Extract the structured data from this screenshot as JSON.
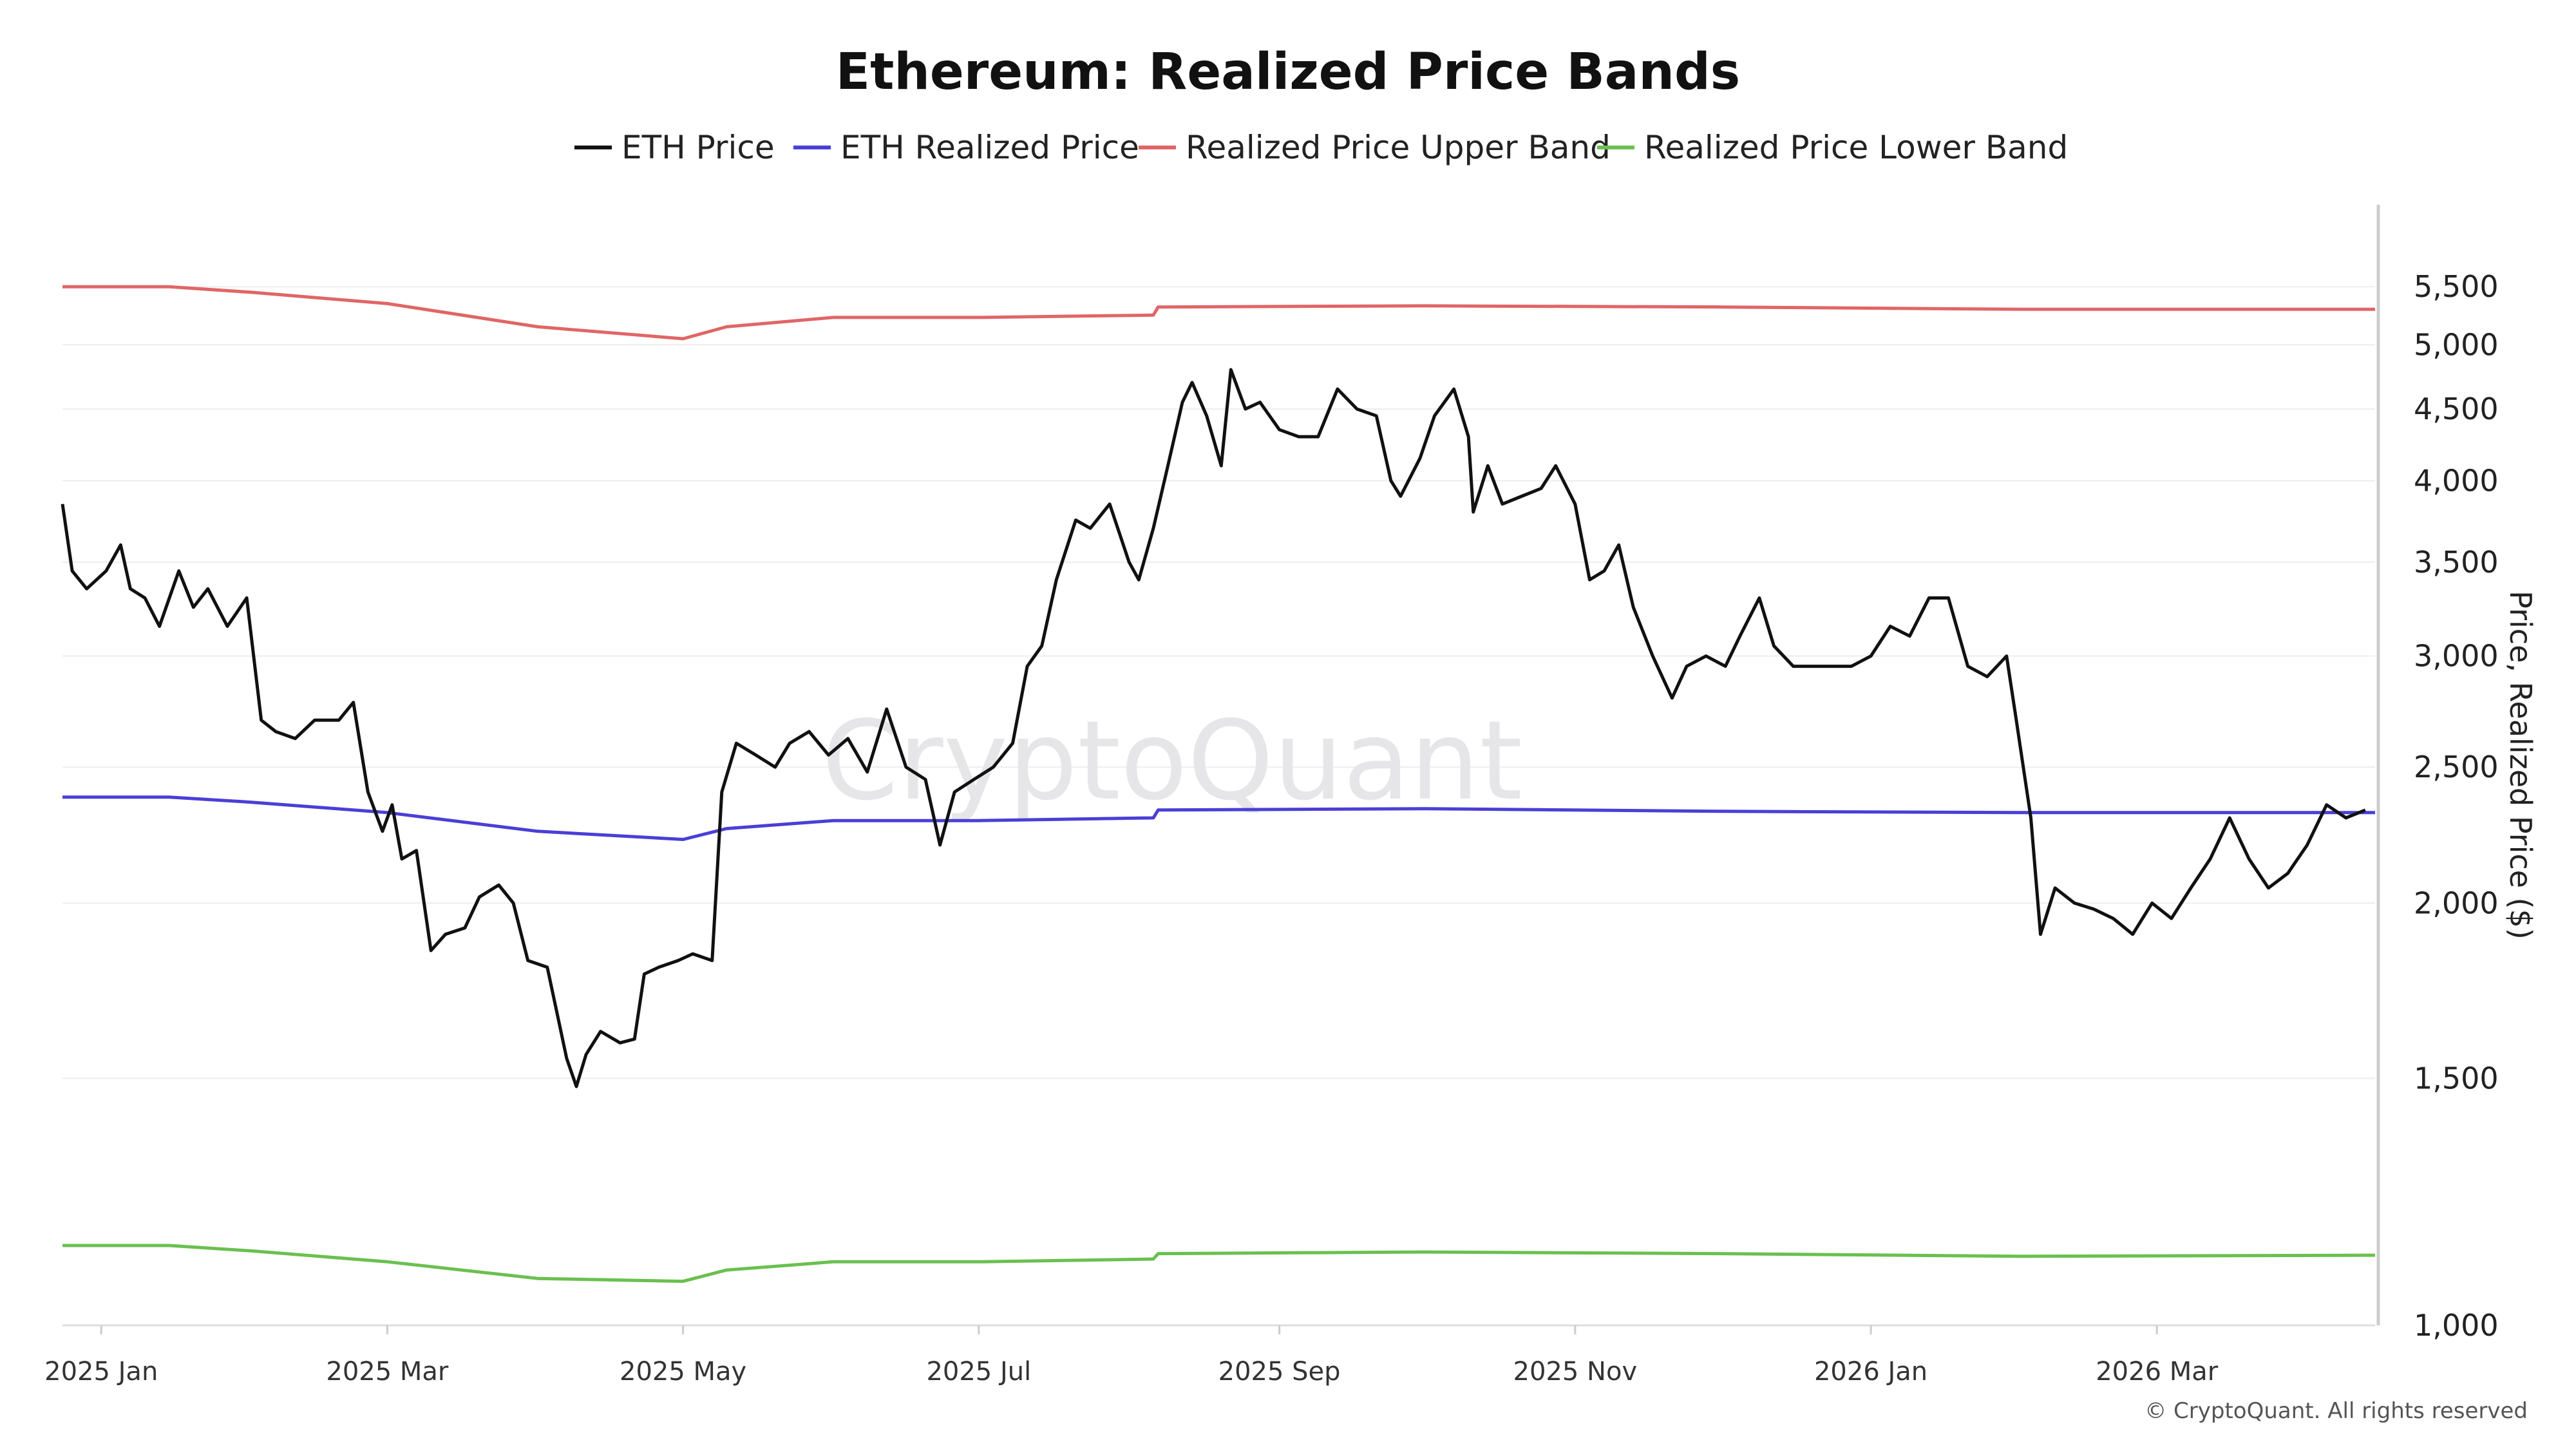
{
  "watermark": "CryptoQuant",
  "copyright": "© CryptoQuant. All rights reserved",
  "chart_data": {
    "type": "line",
    "title": "Ethereum: Realized Price Bands",
    "ylabel": "Price, Realized Price ($)",
    "xlabel": "",
    "y_scale": "log",
    "ylim": [
      1000,
      5800
    ],
    "grid": "horizontal",
    "legend_position": "top-center",
    "y_ticks": [
      {
        "value": 1000,
        "label": "1,000"
      },
      {
        "value": 1500,
        "label": "1,500"
      },
      {
        "value": 2000,
        "label": "2,000"
      },
      {
        "value": 2500,
        "label": "2,500"
      },
      {
        "value": 3000,
        "label": "3,000"
      },
      {
        "value": 3500,
        "label": "3,500"
      },
      {
        "value": 4000,
        "label": "4,000"
      },
      {
        "value": 4500,
        "label": "4,500"
      },
      {
        "value": 5000,
        "label": "5,000"
      },
      {
        "value": 5500,
        "label": "5,500"
      }
    ],
    "x_range": [
      "2024-12-24",
      "2026-04-15"
    ],
    "x_ticks": [
      {
        "date": "2025-01-01",
        "label": "2025 Jan"
      },
      {
        "date": "2025-03-01",
        "label": "2025 Mar"
      },
      {
        "date": "2025-05-01",
        "label": "2025 May"
      },
      {
        "date": "2025-07-01",
        "label": "2025 Jul"
      },
      {
        "date": "2025-09-01",
        "label": "2025 Sep"
      },
      {
        "date": "2025-11-01",
        "label": "2025 Nov"
      },
      {
        "date": "2026-01-01",
        "label": "2026 Jan"
      },
      {
        "date": "2026-03-01",
        "label": "2026 Mar"
      }
    ],
    "series": [
      {
        "name": "ETH Price",
        "color": "#111111",
        "points": [
          [
            "2024-12-24",
            3850
          ],
          [
            "2024-12-26",
            3450
          ],
          [
            "2024-12-29",
            3350
          ],
          [
            "2025-01-02",
            3450
          ],
          [
            "2025-01-05",
            3600
          ],
          [
            "2025-01-07",
            3350
          ],
          [
            "2025-01-10",
            3300
          ],
          [
            "2025-01-13",
            3150
          ],
          [
            "2025-01-17",
            3450
          ],
          [
            "2025-01-20",
            3250
          ],
          [
            "2025-01-23",
            3350
          ],
          [
            "2025-01-27",
            3150
          ],
          [
            "2025-01-31",
            3300
          ],
          [
            "2025-02-03",
            2700
          ],
          [
            "2025-02-06",
            2650
          ],
          [
            "2025-02-10",
            2620
          ],
          [
            "2025-02-14",
            2700
          ],
          [
            "2025-02-19",
            2700
          ],
          [
            "2025-02-22",
            2780
          ],
          [
            "2025-02-25",
            2400
          ],
          [
            "2025-02-28",
            2250
          ],
          [
            "2025-03-02",
            2350
          ],
          [
            "2025-03-04",
            2150
          ],
          [
            "2025-03-07",
            2180
          ],
          [
            "2025-03-10",
            1850
          ],
          [
            "2025-03-13",
            1900
          ],
          [
            "2025-03-17",
            1920
          ],
          [
            "2025-03-20",
            2020
          ],
          [
            "2025-03-24",
            2060
          ],
          [
            "2025-03-27",
            2000
          ],
          [
            "2025-03-30",
            1820
          ],
          [
            "2025-04-03",
            1800
          ],
          [
            "2025-04-07",
            1550
          ],
          [
            "2025-04-09",
            1480
          ],
          [
            "2025-04-11",
            1560
          ],
          [
            "2025-04-14",
            1620
          ],
          [
            "2025-04-18",
            1590
          ],
          [
            "2025-04-21",
            1600
          ],
          [
            "2025-04-23",
            1780
          ],
          [
            "2025-04-26",
            1800
          ],
          [
            "2025-04-30",
            1820
          ],
          [
            "2025-05-03",
            1840
          ],
          [
            "2025-05-07",
            1820
          ],
          [
            "2025-05-09",
            2400
          ],
          [
            "2025-05-12",
            2600
          ],
          [
            "2025-05-16",
            2550
          ],
          [
            "2025-05-20",
            2500
          ],
          [
            "2025-05-23",
            2600
          ],
          [
            "2025-05-27",
            2650
          ],
          [
            "2025-05-31",
            2550
          ],
          [
            "2025-06-04",
            2620
          ],
          [
            "2025-06-08",
            2480
          ],
          [
            "2025-06-12",
            2750
          ],
          [
            "2025-06-16",
            2500
          ],
          [
            "2025-06-20",
            2450
          ],
          [
            "2025-06-23",
            2200
          ],
          [
            "2025-06-26",
            2400
          ],
          [
            "2025-06-30",
            2450
          ],
          [
            "2025-07-04",
            2500
          ],
          [
            "2025-07-08",
            2600
          ],
          [
            "2025-07-11",
            2950
          ],
          [
            "2025-07-14",
            3050
          ],
          [
            "2025-07-17",
            3400
          ],
          [
            "2025-07-21",
            3750
          ],
          [
            "2025-07-24",
            3700
          ],
          [
            "2025-07-28",
            3850
          ],
          [
            "2025-08-01",
            3500
          ],
          [
            "2025-08-03",
            3400
          ],
          [
            "2025-08-06",
            3700
          ],
          [
            "2025-08-09",
            4100
          ],
          [
            "2025-08-12",
            4550
          ],
          [
            "2025-08-14",
            4700
          ],
          [
            "2025-08-17",
            4450
          ],
          [
            "2025-08-20",
            4100
          ],
          [
            "2025-08-22",
            4800
          ],
          [
            "2025-08-25",
            4500
          ],
          [
            "2025-08-28",
            4550
          ],
          [
            "2025-09-01",
            4350
          ],
          [
            "2025-09-05",
            4300
          ],
          [
            "2025-09-09",
            4300
          ],
          [
            "2025-09-13",
            4650
          ],
          [
            "2025-09-17",
            4500
          ],
          [
            "2025-09-21",
            4450
          ],
          [
            "2025-09-24",
            4000
          ],
          [
            "2025-09-26",
            3900
          ],
          [
            "2025-09-30",
            4150
          ],
          [
            "2025-10-03",
            4450
          ],
          [
            "2025-10-07",
            4650
          ],
          [
            "2025-10-10",
            4300
          ],
          [
            "2025-10-11",
            3800
          ],
          [
            "2025-10-14",
            4100
          ],
          [
            "2025-10-17",
            3850
          ],
          [
            "2025-10-21",
            3900
          ],
          [
            "2025-10-25",
            3950
          ],
          [
            "2025-10-28",
            4100
          ],
          [
            "2025-11-01",
            3850
          ],
          [
            "2025-11-04",
            3400
          ],
          [
            "2025-11-07",
            3450
          ],
          [
            "2025-11-10",
            3600
          ],
          [
            "2025-11-13",
            3250
          ],
          [
            "2025-11-17",
            3000
          ],
          [
            "2025-11-21",
            2800
          ],
          [
            "2025-11-24",
            2950
          ],
          [
            "2025-11-28",
            3000
          ],
          [
            "2025-12-02",
            2950
          ],
          [
            "2025-12-05",
            3100
          ],
          [
            "2025-12-09",
            3300
          ],
          [
            "2025-12-12",
            3050
          ],
          [
            "2025-12-16",
            2950
          ],
          [
            "2025-12-20",
            2950
          ],
          [
            "2025-12-24",
            2950
          ],
          [
            "2025-12-28",
            2950
          ],
          [
            "2026-01-01",
            3000
          ],
          [
            "2026-01-05",
            3150
          ],
          [
            "2026-01-09",
            3100
          ],
          [
            "2026-01-13",
            3300
          ],
          [
            "2026-01-17",
            3300
          ],
          [
            "2026-01-21",
            2950
          ],
          [
            "2026-01-25",
            2900
          ],
          [
            "2026-01-29",
            3000
          ],
          [
            "2026-01-31",
            2700
          ],
          [
            "2026-02-03",
            2300
          ],
          [
            "2026-02-05",
            1900
          ],
          [
            "2026-02-08",
            2050
          ],
          [
            "2026-02-12",
            2000
          ],
          [
            "2026-02-16",
            1980
          ],
          [
            "2026-02-20",
            1950
          ],
          [
            "2026-02-24",
            1900
          ],
          [
            "2026-02-28",
            2000
          ],
          [
            "2026-03-04",
            1950
          ],
          [
            "2026-03-08",
            2050
          ],
          [
            "2026-03-12",
            2150
          ],
          [
            "2026-03-16",
            2300
          ],
          [
            "2026-03-20",
            2150
          ],
          [
            "2026-03-24",
            2050
          ],
          [
            "2026-03-28",
            2100
          ],
          [
            "2026-04-01",
            2200
          ],
          [
            "2026-04-05",
            2350
          ],
          [
            "2026-04-09",
            2300
          ],
          [
            "2026-04-13",
            2330
          ]
        ]
      },
      {
        "name": "ETH Realized Price",
        "color": "#4a3fd6",
        "points": [
          [
            "2024-12-24",
            2380
          ],
          [
            "2025-01-15",
            2380
          ],
          [
            "2025-02-01",
            2360
          ],
          [
            "2025-03-01",
            2320
          ],
          [
            "2025-04-01",
            2250
          ],
          [
            "2025-05-01",
            2220
          ],
          [
            "2025-05-10",
            2260
          ],
          [
            "2025-06-01",
            2290
          ],
          [
            "2025-07-01",
            2290
          ],
          [
            "2025-08-06",
            2300
          ],
          [
            "2025-08-07",
            2330
          ],
          [
            "2025-10-01",
            2335
          ],
          [
            "2025-12-01",
            2325
          ],
          [
            "2026-02-01",
            2320
          ],
          [
            "2026-04-15",
            2320
          ]
        ]
      },
      {
        "name": "Realized Price Upper Band",
        "color": "#e06666",
        "points": [
          [
            "2024-12-24",
            5500
          ],
          [
            "2025-01-15",
            5500
          ],
          [
            "2025-02-01",
            5450
          ],
          [
            "2025-03-01",
            5350
          ],
          [
            "2025-04-01",
            5150
          ],
          [
            "2025-05-01",
            5050
          ],
          [
            "2025-05-10",
            5150
          ],
          [
            "2025-06-01",
            5230
          ],
          [
            "2025-07-01",
            5230
          ],
          [
            "2025-08-06",
            5250
          ],
          [
            "2025-08-07",
            5320
          ],
          [
            "2025-10-01",
            5330
          ],
          [
            "2025-12-01",
            5320
          ],
          [
            "2026-02-01",
            5300
          ],
          [
            "2026-04-15",
            5300
          ]
        ]
      },
      {
        "name": "Realized Price Lower Band",
        "color": "#6ac04f",
        "points": [
          [
            "2024-12-24",
            1140
          ],
          [
            "2025-01-15",
            1140
          ],
          [
            "2025-02-01",
            1130
          ],
          [
            "2025-03-01",
            1110
          ],
          [
            "2025-04-01",
            1080
          ],
          [
            "2025-05-01",
            1075
          ],
          [
            "2025-05-10",
            1095
          ],
          [
            "2025-06-01",
            1110
          ],
          [
            "2025-07-01",
            1110
          ],
          [
            "2025-08-06",
            1115
          ],
          [
            "2025-08-07",
            1125
          ],
          [
            "2025-10-01",
            1128
          ],
          [
            "2025-12-01",
            1125
          ],
          [
            "2026-02-01",
            1120
          ],
          [
            "2026-04-15",
            1122
          ]
        ]
      }
    ]
  }
}
